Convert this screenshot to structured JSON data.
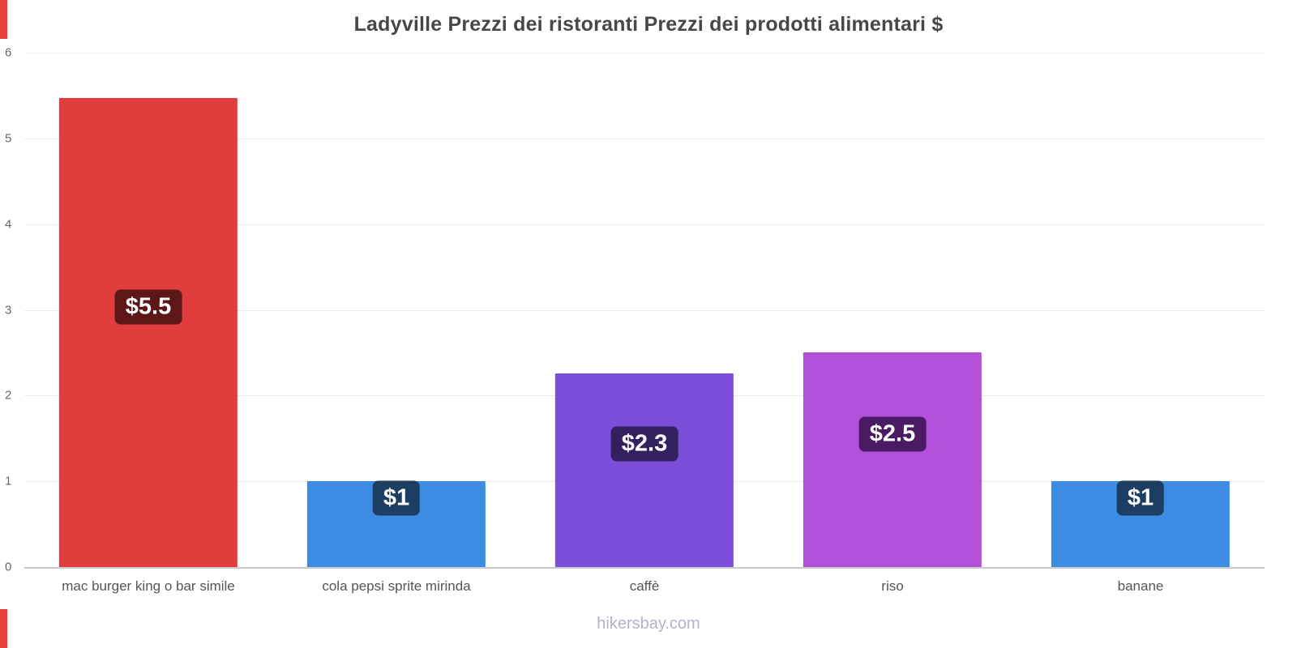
{
  "title": "Ladyville Prezzi dei ristoranti Prezzi dei prodotti alimentari $",
  "footer": "hikersbay.com",
  "accent_color": "#e8413c",
  "chart_data": {
    "type": "bar",
    "title": "Ladyville Prezzi dei ristoranti Prezzi dei prodotti alimentari $",
    "categories": [
      "mac burger king o bar simile",
      "cola pepsi sprite mirinda",
      "caffè",
      "riso",
      "banane"
    ],
    "values": [
      5.47,
      1,
      2.26,
      2.5,
      1
    ],
    "labels": [
      "$5.5",
      "$1",
      "$2.3",
      "$2.5",
      "$1"
    ],
    "bar_colors": [
      "#e23d3d",
      "#3b8ce2",
      "#7b4ed9",
      "#b350d9",
      "#3b8ce2"
    ],
    "label_bg_colors": [
      "#5c1716",
      "#1d3e63",
      "#33215f",
      "#4b1a63",
      "#1d3e63"
    ],
    "xlabel": "",
    "ylabel": "",
    "ylim": [
      0,
      6
    ],
    "yticks": [
      0,
      1,
      2,
      3,
      4,
      5,
      6
    ],
    "grid": true,
    "legend_position": "none",
    "watermark": "hikersbay.com"
  }
}
